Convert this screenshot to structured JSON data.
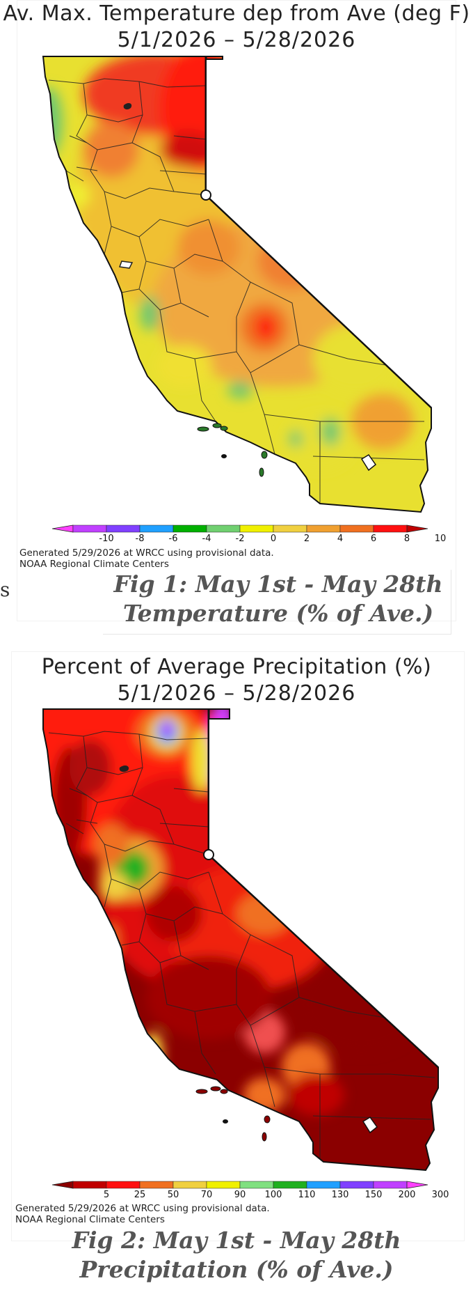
{
  "fig1": {
    "title_line1": "Av. Max. Temperature dep from Ave (deg F)",
    "title_line2": "5/1/2026 – 5/28/2026",
    "legend_colors": [
      "#ff40ff",
      "#c040ff",
      "#8040ff",
      "#20a0ff",
      "#00b000",
      "#70d070",
      "#f0f000",
      "#f0d040",
      "#f0a030",
      "#f07020",
      "#ff1010",
      "#c00000"
    ],
    "legend_ticks": [
      "-10",
      "-8",
      "-6",
      "-4",
      "-2",
      "0",
      "2",
      "4",
      "6",
      "8",
      "10"
    ],
    "generated": "Generated 5/29/2026 at WRCC using provisional data.",
    "source": "NOAA Regional Climate Centers",
    "caption_line1_bold": "Fig 1",
    "caption_line1_rest": ": May 1st - May 28th",
    "caption_line2": "Temperature (% of Ave.)",
    "stray_text": "s"
  },
  "fig2": {
    "title_line1": "Percent of Average Precipitation (%)",
    "title_line2": "5/1/2026 – 5/28/2026",
    "legend_colors": [
      "#8b0000",
      "#c00000",
      "#ff1010",
      "#f07020",
      "#f0d040",
      "#f0f000",
      "#80e080",
      "#20b020",
      "#20a0ff",
      "#8040ff",
      "#c040ff",
      "#ff40ff"
    ],
    "legend_ticks": [
      "5",
      "25",
      "50",
      "70",
      "90",
      "100",
      "110",
      "130",
      "150",
      "200",
      "300"
    ],
    "generated": "Generated 5/29/2026 at WRCC using provisional data.",
    "source": "NOAA Regional Climate Centers",
    "caption_line1_bold": "Fig 2",
    "caption_line1_rest": ": May 1st - May 28th",
    "caption_line2": "Precipitation (% of Ave.)"
  }
}
